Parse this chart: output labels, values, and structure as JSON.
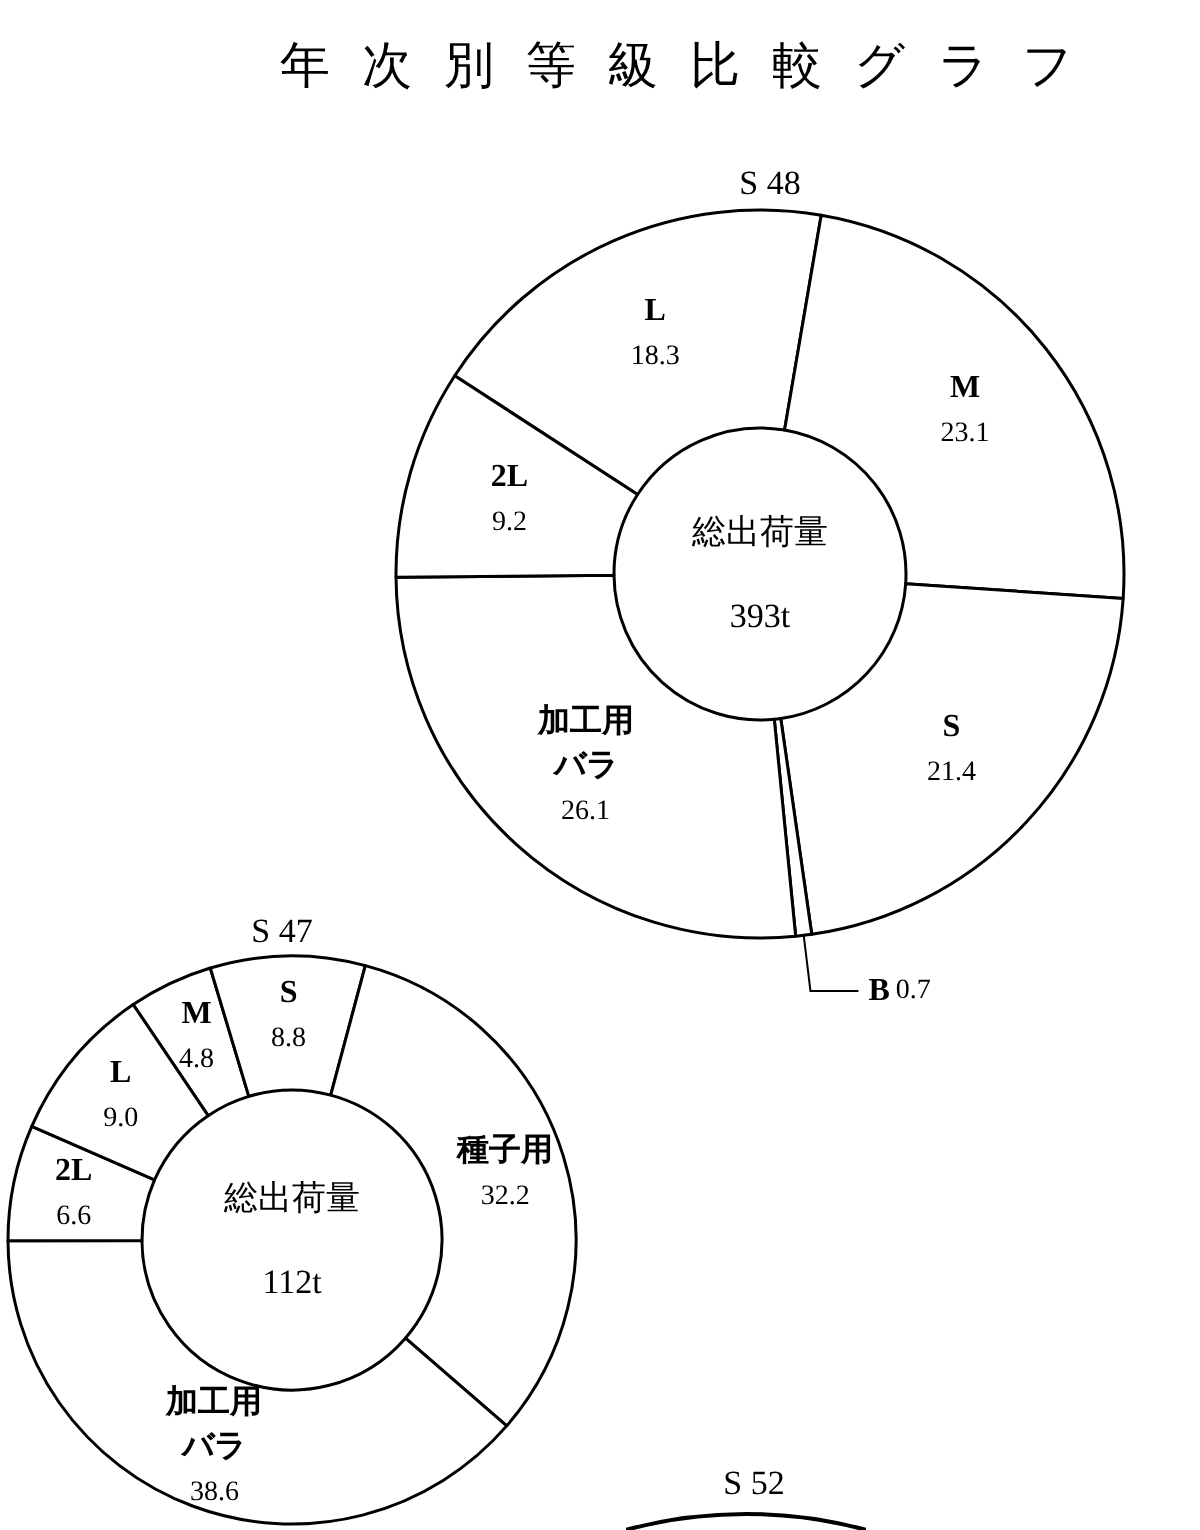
{
  "chart_data": [
    {
      "type": "donut",
      "title": "年次別等級比較グラフ",
      "subtitle": "S 48",
      "categories": [
        "L",
        "M",
        "S",
        "B",
        "加工用バラ",
        "2L"
      ],
      "values": [
        18.3,
        23.1,
        21.4,
        0.7,
        26.1,
        9.2
      ],
      "value_labels": [
        "18.3",
        "23.1",
        "21.4",
        "0.7",
        "26.1",
        "9.2"
      ],
      "colors": [
        "#ffffff",
        "#ffffff",
        "#ffffff",
        "#ffffff",
        "#ffffff",
        "#ffffff"
      ],
      "annotations": [
        "総出荷量",
        "393t"
      ]
    },
    {
      "type": "donut",
      "title": "S 47",
      "categories": [
        "M",
        "S",
        "種子用",
        "加工用バラ",
        "2L",
        "L"
      ],
      "values": [
        4.8,
        8.8,
        32.2,
        38.6,
        6.6,
        9.0
      ],
      "value_labels": [
        "4.8",
        "8.8",
        "32.2",
        "38.6",
        "6.6",
        "9.0"
      ],
      "colors": [
        "#ffffff",
        "#ffffff",
        "#ffffff",
        "#ffffff",
        "#ffffff",
        "#ffffff"
      ],
      "annotations": [
        "総出荷量",
        "112t"
      ]
    },
    {
      "type": "other",
      "title": "S 52"
    }
  ]
}
